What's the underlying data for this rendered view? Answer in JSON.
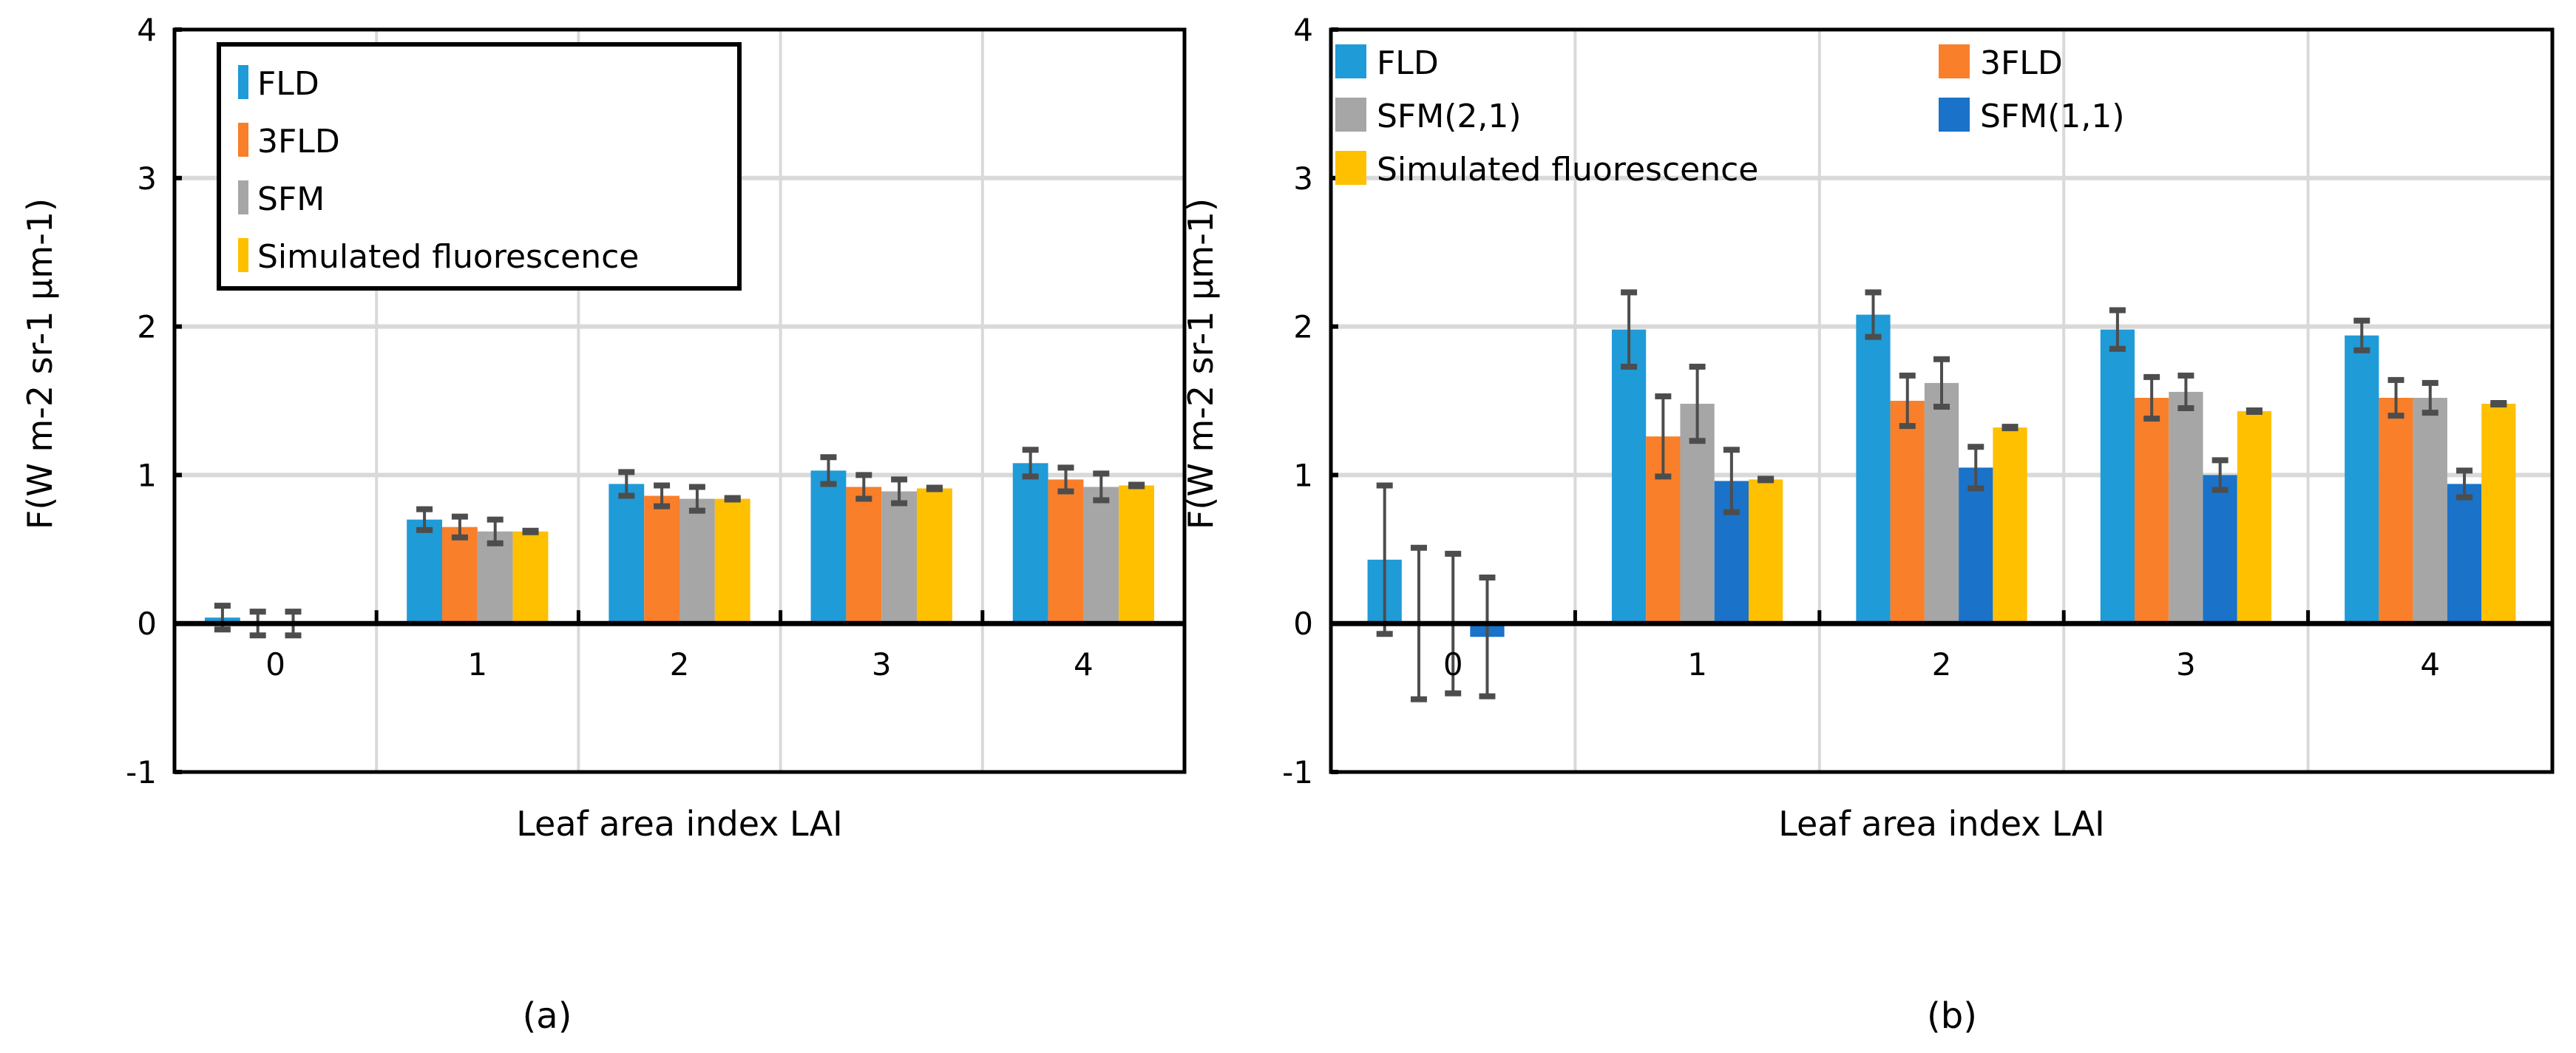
{
  "chart_data": [
    {
      "type": "bar",
      "panel_label": "(a)",
      "title": "",
      "xlabel": "Leaf area index LAI",
      "ylabel": "F(W m-2 sr-1 µm-1)",
      "ylim": [
        -1,
        4
      ],
      "yticks": [
        "-1",
        "0",
        "1",
        "2",
        "3",
        "4"
      ],
      "categories": [
        "0",
        "1",
        "2",
        "3",
        "4"
      ],
      "grid": true,
      "legend_position": "top-left",
      "legend_boxed": true,
      "series": [
        {
          "name": "FLD",
          "color": "#1f9bd7",
          "values": [
            0.04,
            0.7,
            0.94,
            1.03,
            1.08
          ],
          "errors": [
            0.08,
            0.07,
            0.08,
            0.09,
            0.09
          ]
        },
        {
          "name": "3FLD",
          "color": "#f97f2a",
          "values": [
            0.0,
            0.65,
            0.86,
            0.92,
            0.97
          ],
          "errors": [
            0.08,
            0.07,
            0.07,
            0.08,
            0.08
          ]
        },
        {
          "name": "SFM",
          "color": "#a6a6a6",
          "values": [
            0.0,
            0.62,
            0.84,
            0.89,
            0.92
          ],
          "errors": [
            0.08,
            0.08,
            0.08,
            0.08,
            0.09
          ]
        },
        {
          "name": "Simulated  fluorescence",
          "color": "#ffc000",
          "values": [
            0.0,
            0.62,
            0.84,
            0.91,
            0.93
          ],
          "errors": [
            0,
            0.005,
            0.005,
            0.005,
            0.005
          ]
        }
      ]
    },
    {
      "type": "bar",
      "panel_label": "(b)",
      "title": "",
      "xlabel": "Leaf area index LAI",
      "ylabel": "F(W m-2 sr-1 µm-1)",
      "ylim": [
        -1,
        4
      ],
      "yticks": [
        "-1",
        "0",
        "1",
        "2",
        "3",
        "4"
      ],
      "categories": [
        "0",
        "1",
        "2",
        "3",
        "4"
      ],
      "grid": true,
      "legend_position": "top",
      "legend_boxed": false,
      "series": [
        {
          "name": "FLD",
          "color": "#1f9bd7",
          "values": [
            0.43,
            1.98,
            2.08,
            1.98,
            1.94
          ],
          "errors": [
            0.5,
            0.25,
            0.15,
            0.13,
            0.1
          ]
        },
        {
          "name": "3FLD",
          "color": "#f97f2a",
          "values": [
            0.0,
            1.26,
            1.5,
            1.52,
            1.52
          ],
          "errors": [
            0.51,
            0.27,
            0.17,
            0.14,
            0.12
          ]
        },
        {
          "name": "SFM(2,1)",
          "color": "#a6a6a6",
          "values": [
            0.0,
            1.48,
            1.62,
            1.56,
            1.52
          ],
          "errors": [
            0.47,
            0.25,
            0.16,
            0.11,
            0.1
          ]
        },
        {
          "name": "SFM(1,1)",
          "color": "#1a72c9",
          "values": [
            -0.09,
            0.96,
            1.05,
            1.0,
            0.94
          ],
          "errors": [
            0.4,
            0.21,
            0.14,
            0.1,
            0.09
          ]
        },
        {
          "name": "Simulated fluorescence",
          "color": "#ffc000",
          "values": [
            0.0,
            0.97,
            1.32,
            1.43,
            1.48
          ],
          "errors": [
            0,
            0.005,
            0.005,
            0.005,
            0.005
          ]
        }
      ]
    }
  ]
}
